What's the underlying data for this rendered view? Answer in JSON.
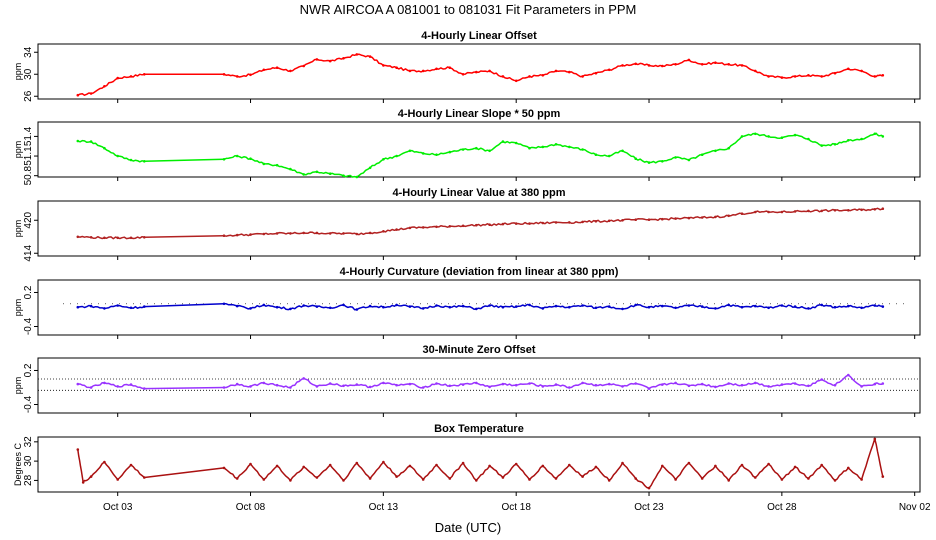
{
  "title": "NWR   AIRCOA A   081001 to 081031   Fit Parameters in PPM",
  "xlabel": "Date (UTC)",
  "x_ticks": [
    {
      "day": 3,
      "label": "Oct 03"
    },
    {
      "day": 8,
      "label": "Oct 08"
    },
    {
      "day": 13,
      "label": "Oct 13"
    },
    {
      "day": 18,
      "label": "Oct 18"
    },
    {
      "day": 23,
      "label": "Oct 23"
    },
    {
      "day": 28,
      "label": "Oct 28"
    },
    {
      "day": 33,
      "label": "Nov 02"
    }
  ],
  "chart_data": [
    {
      "type": "line",
      "title": "4-Hourly Linear Offset",
      "ylabel": "ppm",
      "color": "#ff0000",
      "ylim": [
        25.5,
        35.5
      ],
      "yticks": [
        26,
        30,
        34
      ],
      "x": [
        1.5,
        2.0,
        2.5,
        3.0,
        3.5,
        4.0,
        7.0,
        7.5,
        8.0,
        8.5,
        9.0,
        9.5,
        10.0,
        10.5,
        11.0,
        11.5,
        12.0,
        12.5,
        13.0,
        13.5,
        14.0,
        14.5,
        15.0,
        15.5,
        16.0,
        16.5,
        17.0,
        17.5,
        18.0,
        18.5,
        19.0,
        19.5,
        20.0,
        20.5,
        21.0,
        21.5,
        22.0,
        22.5,
        23.0,
        23.5,
        24.0,
        24.5,
        25.0,
        25.5,
        26.0,
        26.5,
        27.0,
        27.5,
        28.0,
        28.5,
        29.0,
        29.5,
        30.0,
        30.5,
        31.0,
        31.5,
        31.8
      ],
      "values": [
        26.2,
        26.5,
        27.8,
        29.3,
        29.6,
        30.0,
        30.0,
        29.6,
        29.9,
        30.8,
        31.2,
        30.6,
        31.5,
        32.7,
        32.4,
        32.9,
        33.6,
        33.2,
        31.6,
        31.2,
        30.6,
        30.6,
        31.0,
        31.2,
        30.0,
        30.4,
        30.6,
        29.6,
        28.8,
        29.6,
        29.8,
        30.6,
        30.4,
        29.6,
        30.2,
        30.8,
        31.6,
        31.9,
        31.6,
        31.5,
        31.8,
        32.6,
        31.8,
        32.1,
        31.8,
        31.6,
        30.6,
        29.6,
        29.4,
        29.6,
        29.8,
        29.6,
        30.2,
        31.0,
        30.6,
        29.6,
        29.8
      ]
    },
    {
      "type": "line",
      "title": "4-Hourly Linear Slope * 50 ppm",
      "ylabel": "ppm",
      "color": "#00ee00",
      "ylim": [
        50.78,
        51.62
      ],
      "yticks": [
        50.8,
        51.1,
        51.4
      ],
      "x": [
        1.5,
        2.0,
        2.5,
        3.0,
        3.5,
        4.0,
        7.0,
        7.5,
        8.0,
        8.5,
        9.0,
        9.5,
        10.0,
        10.5,
        11.0,
        11.5,
        12.0,
        12.5,
        13.0,
        13.5,
        14.0,
        14.5,
        15.0,
        15.5,
        16.0,
        16.5,
        17.0,
        17.5,
        18.0,
        18.5,
        19.0,
        19.5,
        20.0,
        20.5,
        21.0,
        21.5,
        22.0,
        22.5,
        23.0,
        23.5,
        24.0,
        24.5,
        25.0,
        25.5,
        26.0,
        26.5,
        27.0,
        27.5,
        28.0,
        28.5,
        29.0,
        29.5,
        30.0,
        30.5,
        31.0,
        31.5,
        31.8
      ],
      "values": [
        51.33,
        51.32,
        51.22,
        51.1,
        51.04,
        51.02,
        51.05,
        51.1,
        51.06,
        50.98,
        50.96,
        50.9,
        50.82,
        50.86,
        50.83,
        50.8,
        50.78,
        50.92,
        51.05,
        51.1,
        51.18,
        51.14,
        51.12,
        51.16,
        51.2,
        51.22,
        51.18,
        51.32,
        51.3,
        51.22,
        51.24,
        51.28,
        51.24,
        51.2,
        51.12,
        51.1,
        51.18,
        51.06,
        51.0,
        51.02,
        51.08,
        51.04,
        51.12,
        51.18,
        51.22,
        51.4,
        51.44,
        51.4,
        51.38,
        51.42,
        51.36,
        51.26,
        51.28,
        51.34,
        51.36,
        51.44,
        51.4
      ]
    },
    {
      "type": "line",
      "title": "4-Hourly Linear Value at 380 ppm",
      "ylabel": "ppm",
      "color": "#b22222",
      "ylim": [
        413.5,
        423.5
      ],
      "yticks": [
        414,
        420
      ],
      "x": [
        1.5,
        2.0,
        2.5,
        3.0,
        3.5,
        4.0,
        7.0,
        7.5,
        8.0,
        8.5,
        9.0,
        9.5,
        10.0,
        10.5,
        11.0,
        11.5,
        12.0,
        12.5,
        13.0,
        13.5,
        14.0,
        14.5,
        15.0,
        15.5,
        16.0,
        16.5,
        17.0,
        17.5,
        18.0,
        18.5,
        19.0,
        19.5,
        20.0,
        20.5,
        21.0,
        21.5,
        22.0,
        22.5,
        23.0,
        23.5,
        24.0,
        24.5,
        25.0,
        25.5,
        26.0,
        26.5,
        27.0,
        27.5,
        28.0,
        28.5,
        29.0,
        29.5,
        30.0,
        30.5,
        31.0,
        31.5,
        31.8
      ],
      "values": [
        417.0,
        416.9,
        416.8,
        416.8,
        416.8,
        416.9,
        417.2,
        417.3,
        417.4,
        417.5,
        417.6,
        417.6,
        417.7,
        417.7,
        417.6,
        417.6,
        417.5,
        417.7,
        418.0,
        418.3,
        418.6,
        418.7,
        418.8,
        418.9,
        419.0,
        419.1,
        419.2,
        419.3,
        419.4,
        419.4,
        419.5,
        419.6,
        419.6,
        419.7,
        419.8,
        419.9,
        420.0,
        420.1,
        420.1,
        420.2,
        420.3,
        420.4,
        420.5,
        420.6,
        420.8,
        421.2,
        421.5,
        421.5,
        421.5,
        421.6,
        421.7,
        421.7,
        421.8,
        421.8,
        421.9,
        422.0,
        422.1
      ]
    },
    {
      "type": "line",
      "title": "4-Hourly Curvature (deviation from linear at 380 ppm)",
      "ylabel": "ppm",
      "color": "#0000cc",
      "ylim": [
        -0.55,
        0.42
      ],
      "yticks": [
        -0.4,
        0.2
      ],
      "x": [
        1.5,
        2.0,
        2.5,
        3.0,
        3.5,
        4.0,
        7.0,
        7.5,
        8.0,
        8.5,
        9.0,
        9.5,
        10.0,
        10.5,
        11.0,
        11.5,
        12.0,
        12.5,
        13.0,
        13.5,
        14.0,
        14.5,
        15.0,
        15.5,
        16.0,
        16.5,
        17.0,
        17.5,
        18.0,
        18.5,
        19.0,
        19.5,
        20.0,
        20.5,
        21.0,
        21.5,
        22.0,
        22.5,
        23.0,
        23.5,
        24.0,
        24.5,
        25.0,
        25.5,
        26.0,
        26.5,
        27.0,
        27.5,
        28.0,
        28.5,
        29.0,
        29.5,
        30.0,
        30.5,
        31.0,
        31.5,
        31.8
      ],
      "values": [
        -0.06,
        -0.04,
        -0.08,
        -0.03,
        -0.07,
        -0.05,
        0.0,
        -0.04,
        -0.08,
        -0.02,
        -0.06,
        -0.09,
        -0.03,
        -0.05,
        -0.07,
        -0.02,
        -0.1,
        -0.04,
        -0.06,
        -0.02,
        -0.05,
        -0.08,
        -0.03,
        -0.06,
        -0.04,
        -0.09,
        -0.03,
        -0.06,
        -0.05,
        -0.02,
        -0.08,
        -0.04,
        -0.06,
        -0.03,
        -0.07,
        -0.05,
        -0.09,
        -0.02,
        -0.06,
        -0.04,
        -0.07,
        -0.03,
        -0.05,
        -0.08,
        -0.02,
        -0.06,
        -0.04,
        -0.07,
        -0.03,
        -0.05,
        -0.08,
        -0.02,
        -0.06,
        -0.04,
        -0.07,
        -0.03,
        -0.05
      ]
    },
    {
      "type": "line",
      "title": "30-Minute Zero Offset",
      "ylabel": "ppm",
      "color": "#9933ff",
      "ylim": [
        -0.55,
        0.42
      ],
      "yticks": [
        -0.4,
        0.2
      ],
      "reference_lines": [
        0.05,
        -0.15
      ],
      "x": [
        1.5,
        2.0,
        2.5,
        3.0,
        3.5,
        4.0,
        7.0,
        7.5,
        8.0,
        8.5,
        9.0,
        9.5,
        10.0,
        10.5,
        11.0,
        11.5,
        12.0,
        12.5,
        13.0,
        13.5,
        14.0,
        14.5,
        15.0,
        15.5,
        16.0,
        16.5,
        17.0,
        17.5,
        18.0,
        18.5,
        19.0,
        19.5,
        20.0,
        20.5,
        21.0,
        21.5,
        22.0,
        22.5,
        23.0,
        23.5,
        24.0,
        24.5,
        25.0,
        25.5,
        26.0,
        26.5,
        27.0,
        27.5,
        28.0,
        28.5,
        29.0,
        29.5,
        30.0,
        30.5,
        31.0,
        31.5,
        31.8
      ],
      "values": [
        -0.04,
        -0.1,
        -0.02,
        -0.08,
        -0.05,
        -0.12,
        -0.1,
        -0.04,
        -0.08,
        -0.02,
        -0.06,
        -0.1,
        0.06,
        -0.08,
        -0.03,
        -0.07,
        -0.05,
        -0.09,
        -0.02,
        -0.06,
        -0.04,
        -0.1,
        -0.03,
        -0.07,
        -0.05,
        -0.02,
        -0.09,
        -0.04,
        -0.06,
        -0.03,
        -0.08,
        -0.05,
        -0.1,
        -0.02,
        -0.06,
        -0.04,
        -0.08,
        -0.03,
        -0.12,
        -0.05,
        -0.02,
        -0.07,
        -0.04,
        -0.09,
        -0.03,
        -0.06,
        -0.02,
        -0.08,
        -0.05,
        -0.03,
        -0.07,
        0.04,
        -0.06,
        0.12,
        -0.08,
        -0.04,
        -0.03
      ]
    },
    {
      "type": "line",
      "title": "Box Temperature",
      "ylabel": "Degrees C",
      "color": "#aa1111",
      "ylim": [
        26.8,
        32.5
      ],
      "yticks": [
        28,
        30,
        32
      ],
      "x": [
        1.5,
        1.7,
        2.0,
        2.5,
        3.0,
        3.5,
        4.0,
        7.0,
        7.5,
        8.0,
        8.5,
        9.0,
        9.5,
        10.0,
        10.5,
        11.0,
        11.5,
        12.0,
        12.5,
        13.0,
        13.5,
        14.0,
        14.5,
        15.0,
        15.5,
        16.0,
        16.5,
        17.0,
        17.5,
        18.0,
        18.5,
        19.0,
        19.5,
        20.0,
        20.5,
        21.0,
        21.5,
        22.0,
        22.5,
        23.0,
        23.5,
        24.0,
        24.5,
        25.0,
        25.5,
        26.0,
        26.5,
        27.0,
        27.5,
        28.0,
        28.5,
        29.0,
        29.5,
        30.0,
        30.5,
        31.0,
        31.5,
        31.8
      ],
      "values": [
        31.2,
        27.8,
        28.4,
        29.9,
        28.1,
        29.6,
        28.3,
        29.3,
        28.2,
        29.7,
        28.1,
        29.5,
        28.0,
        29.4,
        28.3,
        29.6,
        28.0,
        29.8,
        28.2,
        29.9,
        28.4,
        29.5,
        28.1,
        29.6,
        28.2,
        29.8,
        28.0,
        29.5,
        28.3,
        29.7,
        28.1,
        29.5,
        28.2,
        29.6,
        28.4,
        29.4,
        28.0,
        29.8,
        28.2,
        27.2,
        29.5,
        28.1,
        29.8,
        28.2,
        29.5,
        28.0,
        29.6,
        28.3,
        29.7,
        28.1,
        29.4,
        28.2,
        29.6,
        28.0,
        29.3,
        28.1,
        32.3,
        28.4
      ]
    }
  ]
}
